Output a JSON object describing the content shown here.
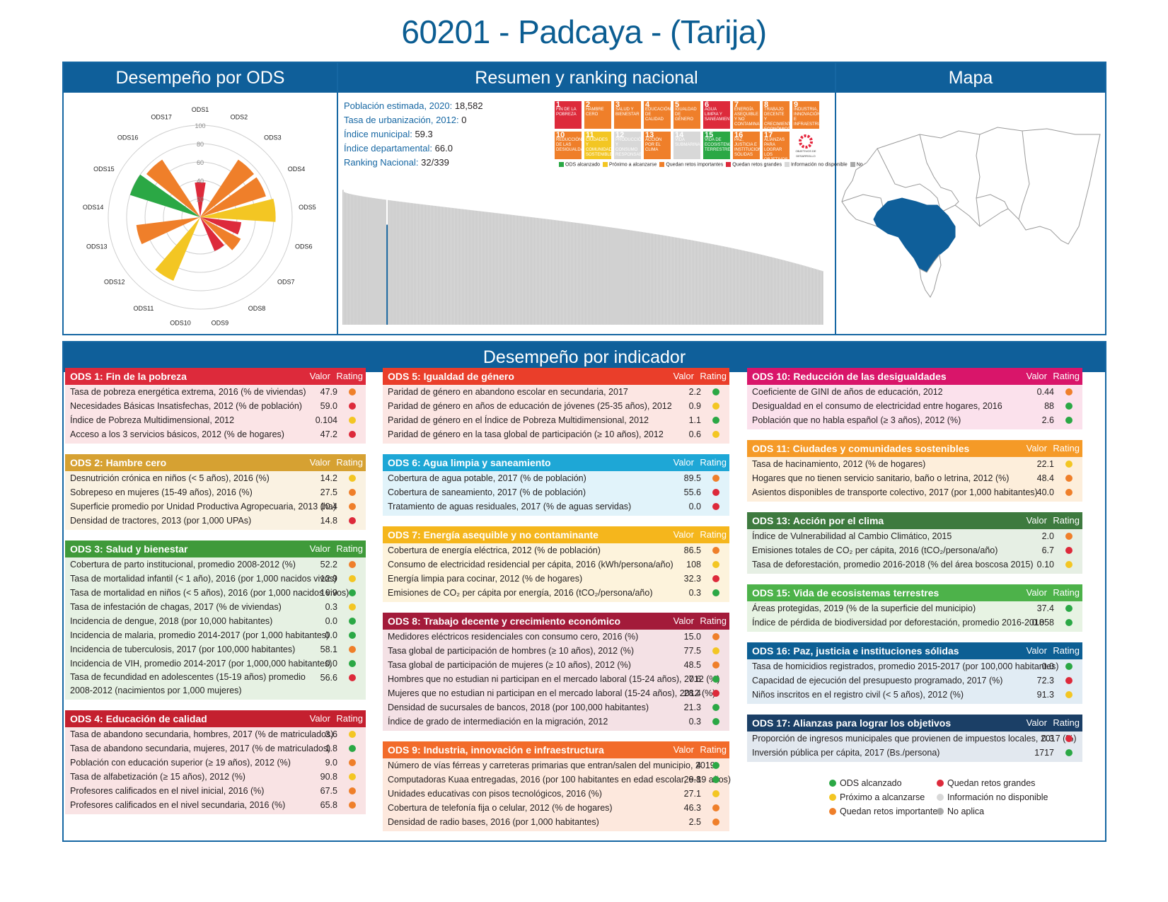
{
  "title": "60201 - Padcaya - (Tarija)",
  "colors": {
    "green": "#2ba845",
    "yellow": "#f3c623",
    "orange": "#ef7f2a",
    "red": "#dd2a3b",
    "lightgray": "#d8d8d8",
    "gray": "#a8a8a8",
    "blue": "#0f5f9a"
  },
  "panels": {
    "desempeno_ods": "Desempeño por ODS",
    "resumen": "Resumen y ranking nacional",
    "mapa": "Mapa",
    "indicador": "Desempeño por indicador"
  },
  "radar": {
    "labels": [
      "ODS1",
      "ODS2",
      "ODS3",
      "ODS4",
      "ODS5",
      "ODS6",
      "ODS7",
      "ODS8",
      "ODS9",
      "ODS10",
      "ODS11",
      "ODS12",
      "ODS13",
      "ODS14",
      "ODS15",
      "ODS16",
      "ODS17"
    ],
    "ticks": [
      "100",
      "80",
      "60",
      "40",
      "20"
    ],
    "values": [
      38,
      0,
      75,
      75,
      82,
      45,
      50,
      40,
      0,
      0,
      75,
      0,
      70,
      0,
      80,
      75,
      0
    ],
    "colors": [
      "red",
      "gray",
      "orange",
      "orange",
      "yellow",
      "red",
      "orange",
      "red",
      "orange",
      "red",
      "yellow",
      "gray",
      "orange",
      "gray",
      "green",
      "orange",
      "gray"
    ]
  },
  "stats": [
    {
      "label": "Población estimada, 2020:",
      "value": "18,582"
    },
    {
      "label": "Tasa de urbanización, 2012:",
      "value": "0"
    },
    {
      "label": "Índice municipal:",
      "value": "59.3"
    },
    {
      "label": "Índice departamental:",
      "value": "66.0"
    },
    {
      "label": "Ranking Nacional:",
      "value": "32/339"
    }
  ],
  "sdg_tiles": [
    {
      "n": "1",
      "t": "FIN DE LA POBREZA",
      "c": "#e5243b"
    },
    {
      "n": "2",
      "t": "HAMBRE CERO",
      "c": "#dda63a"
    },
    {
      "n": "3",
      "t": "SALUD Y BIENESTAR",
      "c": "#4c9f38"
    },
    {
      "n": "4",
      "t": "EDUCACIÓN DE CALIDAD",
      "c": "#c5192d"
    },
    {
      "n": "5",
      "t": "IGUALDAD DE GÉNERO",
      "c": "#ff3a21"
    },
    {
      "n": "6",
      "t": "AGUA LIMPIA Y SANEAMIENTO",
      "c": "#26bde2"
    },
    {
      "n": "7",
      "t": "ENERGÍA ASEQUIBLE Y NO CONTAMINANTE",
      "c": "#fcc30b"
    },
    {
      "n": "8",
      "t": "TRABAJO DECENTE Y CRECIMIENTO ECONÓMICO",
      "c": "#a21942"
    },
    {
      "n": "9",
      "t": "INDUSTRIA, INNOVACIÓN E INFRAESTRUCTURA",
      "c": "#fd6925"
    },
    {
      "n": "10",
      "t": "REDUCCIÓN DE LAS DESIGUALDADES",
      "c": "#dd1367"
    },
    {
      "n": "11",
      "t": "CIUDADES Y COMUNIDADES SOSTENIBLES",
      "c": "#fd9d24"
    },
    {
      "n": "12",
      "t": "PRODUCCIÓN Y CONSUMO RESPONSABLES",
      "c": "#bf8b2e"
    },
    {
      "n": "13",
      "t": "ACCIÓN POR EL CLIMA",
      "c": "#3f7e44"
    },
    {
      "n": "14",
      "t": "VIDA SUBMARINA",
      "c": "#0a97d9"
    },
    {
      "n": "15",
      "t": "VIDA DE ECOSISTEMAS TERRESTRES",
      "c": "#56c02b"
    },
    {
      "n": "16",
      "t": "PAZ, JUSTICIA E INSTITUCIONES SÓLIDAS",
      "c": "#00689d"
    },
    {
      "n": "17",
      "t": "ALIANZAS PARA LOGRAR LOS OBJETIVOS",
      "c": "#19486a"
    },
    {
      "n": "",
      "t": "OBJETIVOS DE DESARROLLO SOSTENIBLE",
      "c": "#ffffff"
    }
  ],
  "sdg_tile_status": [
    "red",
    "orange",
    "orange",
    "orange",
    "orange",
    "red",
    "orange",
    "orange",
    "orange",
    "orange",
    "yellow",
    "lightgray",
    "orange",
    "lightgray",
    "green",
    "orange",
    "orange",
    "none"
  ],
  "sdg_legend": [
    {
      "c": "#2ba845",
      "t": "ODS alcanzado"
    },
    {
      "c": "#f3c623",
      "t": "Próximo a alcanzarse"
    },
    {
      "c": "#ef7f2a",
      "t": "Quedan retos importantes"
    },
    {
      "c": "#dd2a3b",
      "t": "Quedan retos grandes"
    },
    {
      "c": "#d8d8d8",
      "t": "Información no disponible"
    },
    {
      "c": "#a8a8a8",
      "t": "No aplica"
    }
  ],
  "ranking": {
    "total": 339,
    "position": 32,
    "max": 80.3,
    "min": 50.0,
    "highlight_value": 59.3
  },
  "col_valor": "Valor",
  "col_rating": "Rating",
  "tables": [
    {
      "title": "ODS 1: Fin de la pobreza",
      "color": "#dd2a3b",
      "bg": "#fbe4e6",
      "rows": [
        {
          "n": "Tasa de pobreza energética extrema, 2016 (% de viviendas)",
          "v": "47.9",
          "r": "orange"
        },
        {
          "n": "Necesidades Básicas Insatisfechas, 2012 (% de población)",
          "v": "59.0",
          "r": "red"
        },
        {
          "n": "Índice de Pobreza Multidimensional, 2012",
          "v": "0.104",
          "r": "yellow"
        },
        {
          "n": "Acceso a los 3 servicios básicos, 2012 (% de hogares)",
          "v": "47.2",
          "r": "red"
        }
      ]
    },
    {
      "title": "ODS 2: Hambre cero",
      "color": "#d6a132",
      "bg": "#faf2e2",
      "rows": [
        {
          "n": "Desnutrición crónica en niños (< 5 años), 2016 (%)",
          "v": "14.2",
          "r": "yellow"
        },
        {
          "n": "Sobrepeso en mujeres (15-49 años), 2016 (%)",
          "v": "27.5",
          "r": "orange"
        },
        {
          "n": "Superficie promedio por Unidad Productiva Agropecuaria, 2013 (ha)",
          "v": "10.4",
          "r": "orange"
        },
        {
          "n": "Densidad de tractores, 2013 (por 1,000 UPAs)",
          "v": "14.8",
          "r": "red"
        }
      ]
    },
    {
      "title": "ODS 3: Salud y bienestar",
      "color": "#3f9a3a",
      "bg": "#e6f1e3",
      "rows": [
        {
          "n": "Cobertura de parto institucional, promedio 2008-2012 (%)",
          "v": "52.2",
          "r": "orange"
        },
        {
          "n": "Tasa de mortalidad infantil (< 1 año), 2016 (por 1,000 nacidos vivos)",
          "v": "12.9",
          "r": "yellow"
        },
        {
          "n": "Tasa de mortalidad en niños (< 5 años), 2016 (por 1,000 nacidos vivos)",
          "v": "16.9",
          "r": "green"
        },
        {
          "n": "Tasa de infestación de chagas, 2017 (% de viviendas)",
          "v": "0.3",
          "r": "yellow"
        },
        {
          "n": "Incidencia de dengue, 2018 (por 10,000 habitantes)",
          "v": "0.0",
          "r": "green"
        },
        {
          "n": "Incidencia de malaria, promedio 2014-2017 (por 1,000 habitantes)",
          "v": "0.0",
          "r": "green"
        },
        {
          "n": "Incidencia de tuberculosis, 2017 (por 100,000 habitantes)",
          "v": "58.1",
          "r": "orange"
        },
        {
          "n": "Incidencia de VIH, promedio 2014-2017 (por 1,000,000 habitantes)",
          "v": "0.0",
          "r": "green"
        },
        {
          "n": "Tasa de fecundidad en adolescentes (15-19 años) promedio 2008-2012 (nacimientos por 1,000 mujeres)",
          "v": "56.6",
          "r": "red",
          "tall": true
        }
      ]
    },
    {
      "title": "ODS 4: Educación de calidad",
      "color": "#c4202f",
      "bg": "#f9e3e4",
      "rows": [
        {
          "n": "Tasa de abandono secundaria, hombres, 2017 (% de matriculados)",
          "v": "3.6",
          "r": "yellow"
        },
        {
          "n": "Tasa de abandono secundaria, mujeres, 2017 (% de matriculados)",
          "v": "1.8",
          "r": "green"
        },
        {
          "n": "Población con educación superior (≥ 19 años), 2012 (%)",
          "v": "9.0",
          "r": "orange"
        },
        {
          "n": "Tasa de alfabetización (≥ 15 años), 2012 (%)",
          "v": "90.8",
          "r": "yellow"
        },
        {
          "n": "Profesores calificados en el nivel inicial, 2016 (%)",
          "v": "67.5",
          "r": "orange"
        },
        {
          "n": "Profesores calificados en el nivel secundaria, 2016 (%)",
          "v": "65.8",
          "r": "orange"
        }
      ]
    },
    {
      "title": "ODS 5: Igualdad de género",
      "color": "#ea3e2a",
      "bg": "#fce6e3",
      "rows": [
        {
          "n": "Paridad de género en abandono escolar en secundaria, 2017",
          "v": "2.2",
          "r": "green"
        },
        {
          "n": "Paridad de género en años de educación de jóvenes (25-35 años), 2012",
          "v": "0.9",
          "r": "yellow"
        },
        {
          "n": "Paridad de género en el Índice de Pobreza Multidimensional, 2012",
          "v": "1.1",
          "r": "green"
        },
        {
          "n": "Paridad de género en la tasa global de participación (≥ 10 años), 2012",
          "v": "0.6",
          "r": "yellow"
        }
      ]
    },
    {
      "title": "ODS 6: Agua limpia y saneamiento",
      "color": "#1ea7d6",
      "bg": "#e1f3fa",
      "rows": [
        {
          "n": "Cobertura de agua potable, 2017 (% de población)",
          "v": "89.5",
          "r": "orange"
        },
        {
          "n": "Cobertura de saneamiento, 2017 (% de población)",
          "v": "55.6",
          "r": "red"
        },
        {
          "n": "Tratamiento de aguas residuales, 2017 (% de aguas servidas)",
          "v": "0.0",
          "r": "red"
        }
      ]
    },
    {
      "title": "ODS 7: Energía asequible y no contaminante",
      "color": "#f5b61c",
      "bg": "#fdf3dc",
      "rows": [
        {
          "n": "Cobertura de energía eléctrica, 2012 (% de población)",
          "v": "86.5",
          "r": "orange"
        },
        {
          "n": "Consumo de electricidad residencial per cápita, 2016 (kWh/persona/año)",
          "v": "108",
          "r": "yellow"
        },
        {
          "n": "Energía limpia para cocinar, 2012 (% de hogares)",
          "v": "32.3",
          "r": "red"
        },
        {
          "n": "Emisiones de CO₂ per cápita por energía, 2016 (tCO₂/persona/año)",
          "v": "0.3",
          "r": "green"
        }
      ]
    },
    {
      "title": "ODS 8: Trabajo decente y crecimiento económico",
      "color": "#a31b3a",
      "bg": "#f4e1e5",
      "rows": [
        {
          "n": "Medidores eléctricos residenciales con consumo cero, 2016 (%)",
          "v": "15.0",
          "r": "orange"
        },
        {
          "n": "Tasa global de participación de hombres (≥ 10 años), 2012 (%)",
          "v": "77.5",
          "r": "yellow"
        },
        {
          "n": "Tasa global de participación de mujeres (≥ 10 años), 2012 (%)",
          "v": "48.5",
          "r": "orange"
        },
        {
          "n": "Hombres que no estudian ni participan en el mercado laboral (15-24 años), 2012 (%)",
          "v": "7.6",
          "r": "green"
        },
        {
          "n": "Mujeres que no estudian ni participan en el mercado laboral (15-24 años), 2012 (%)",
          "v": "28.4",
          "r": "red"
        },
        {
          "n": "Densidad de sucursales de bancos, 2018 (por 100,000 habitantes)",
          "v": "21.3",
          "r": "green"
        },
        {
          "n": "Índice de grado de intermediación en la migración, 2012",
          "v": "0.3",
          "r": "green"
        }
      ]
    },
    {
      "title": "ODS 9: Industria, innovación e infraestructura",
      "color": "#f26b2a",
      "bg": "#fde8dd",
      "rows": [
        {
          "n": "Número de vías férreas y carreteras primarias que entran/salen del municipio, 2019",
          "v": "4",
          "r": "green"
        },
        {
          "n": "Computadoras Kuaa entregadas, 2016 (por 100 habitantes en edad escolar, 6-19 años)",
          "v": "29.8",
          "r": "green"
        },
        {
          "n": "Unidades educativas con pisos tecnológicos, 2016 (%)",
          "v": "27.1",
          "r": "yellow"
        },
        {
          "n": "Cobertura de telefonía fija o celular, 2012 (% de hogares)",
          "v": "46.3",
          "r": "orange"
        },
        {
          "n": "Densidad de radio bases, 2016 (por 1,000 habitantes)",
          "v": "2.5",
          "r": "orange"
        }
      ]
    },
    {
      "title": "ODS 10: Reducción de las desigualdades",
      "color": "#d9156a",
      "bg": "#fbe1ec",
      "rows": [
        {
          "n": "Coeficiente de GINI de años de educación, 2012",
          "v": "0.44",
          "r": "orange"
        },
        {
          "n": "Desigualdad en el consumo de electricidad entre hogares, 2016",
          "v": "88",
          "r": "green"
        },
        {
          "n": "Población que no habla español (≥ 3 años), 2012 (%)",
          "v": "2.6",
          "r": "green"
        }
      ]
    },
    {
      "title": "ODS 11: Ciudades y comunidades sostenibles",
      "color": "#f59a27",
      "bg": "#fdeedb",
      "rows": [
        {
          "n": "Tasa de hacinamiento, 2012 (% de hogares)",
          "v": "22.1",
          "r": "yellow"
        },
        {
          "n": "Hogares que no tienen servicio sanitario, baño o letrina, 2012 (%)",
          "v": "48.4",
          "r": "orange"
        },
        {
          "n": "Asientos disponibles de transporte colectivo, 2017 (por 1,000 habitantes)",
          "v": "40.0",
          "r": "orange"
        }
      ]
    },
    {
      "title": "ODS 13: Acción por el clima",
      "color": "#3e7a3f",
      "bg": "#e6efe4",
      "rows": [
        {
          "n": "Índice de Vulnerabilidad al Cambio Climático, 2015",
          "v": "2.0",
          "r": "orange"
        },
        {
          "n": "Emisiones totales de CO₂ per cápita, 2016 (tCO₂/persona/año)",
          "v": "6.7",
          "r": "red"
        },
        {
          "n": "Tasa de deforestación, promedio 2016-2018 (% del área boscosa 2015)",
          "v": "0.10",
          "r": "yellow"
        }
      ]
    },
    {
      "title": "ODS 15: Vida de ecosistemas terrestres",
      "color": "#4db24a",
      "bg": "#e7f3e3",
      "rows": [
        {
          "n": "Áreas protegidas, 2019 (% de la superficie del municipio)",
          "v": "37.4",
          "r": "green"
        },
        {
          "n": "Índice de pérdida de biodiversidad por deforestación, promedio 2016-2018",
          "v": "0.058",
          "r": "green"
        }
      ]
    },
    {
      "title": "ODS 16: Paz, justicia e instituciones sólidas",
      "color": "#0d5f94",
      "bg": "#e1ecf4",
      "rows": [
        {
          "n": "Tasa de homicidios registrados, promedio 2015-2017 (por 100,000 habitantes)",
          "v": "0.0",
          "r": "green"
        },
        {
          "n": "Capacidad de ejecución del presupuesto programado, 2017 (%)",
          "v": "72.3",
          "r": "red"
        },
        {
          "n": "Niños inscritos en el registro civil (< 5 años), 2012 (%)",
          "v": "91.3",
          "r": "yellow"
        }
      ]
    },
    {
      "title": "ODS 17: Alianzas para lograr los objetivos",
      "color": "#1b3f66",
      "bg": "#e2e8ef",
      "rows": [
        {
          "n": "Proporción de ingresos municipales que provienen de impuestos locales, 2017 (%)",
          "v": "0.3",
          "r": "red"
        },
        {
          "n": "Inversión pública per cápita, 2017 (Bs./persona)",
          "v": "1717",
          "r": "green"
        }
      ]
    }
  ],
  "legend": [
    {
      "r": "green",
      "t": "ODS alcanzado"
    },
    {
      "r": "yellow",
      "t": "Próximo a alcanzarse"
    },
    {
      "r": "orange",
      "t": "Quedan retos importantes"
    },
    {
      "r": "red",
      "t": "Quedan retos grandes"
    },
    {
      "r": "lightgray",
      "t": "Información no disponible"
    },
    {
      "r": "gray",
      "t": "No aplica"
    }
  ]
}
